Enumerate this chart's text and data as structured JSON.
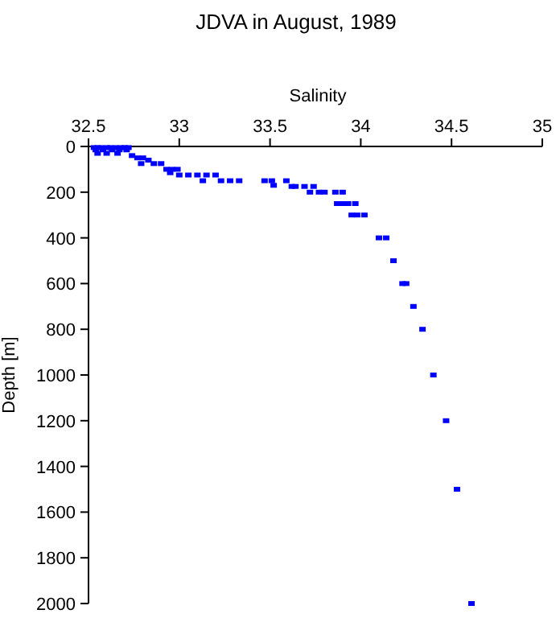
{
  "chart_data": {
    "type": "scatter",
    "title": "JDVA in August, 1989",
    "xlabel": "Salinity",
    "ylabel": "Depth [m]",
    "xlim": [
      32.5,
      35
    ],
    "xticks": [
      32.5,
      33,
      33.5,
      34,
      34.5,
      35
    ],
    "ylim": [
      2000,
      0
    ],
    "yticks": [
      0,
      200,
      400,
      600,
      800,
      1000,
      1200,
      1400,
      1600,
      1800,
      2000
    ],
    "marker": "square",
    "series": [
      {
        "color": "#0000ff",
        "x": [
          32.53,
          32.55,
          32.57,
          32.6,
          32.62,
          32.65,
          32.68,
          32.7,
          32.72,
          32.54,
          32.58,
          32.63,
          32.67,
          32.71,
          32.55,
          32.6,
          32.66,
          32.74,
          32.77,
          32.8,
          32.83,
          32.79,
          32.86,
          32.9,
          32.93,
          32.96,
          32.99,
          32.95,
          33.0,
          33.05,
          33.1,
          33.15,
          33.2,
          33.13,
          33.23,
          33.28,
          33.33,
          33.47,
          33.51,
          33.52,
          33.59,
          33.62,
          33.64,
          33.69,
          33.74,
          33.72,
          33.77,
          33.8,
          33.86,
          33.9,
          33.87,
          33.9,
          33.93,
          33.97,
          33.95,
          33.98,
          34.02,
          34.1,
          34.14,
          34.18,
          34.23,
          34.25,
          34.29,
          34.34,
          34.4,
          34.47,
          34.53,
          34.61
        ],
        "values": [
          5,
          5,
          5,
          5,
          5,
          5,
          5,
          5,
          5,
          15,
          15,
          15,
          15,
          15,
          30,
          30,
          30,
          40,
          50,
          50,
          60,
          75,
          75,
          75,
          100,
          100,
          100,
          115,
          125,
          125,
          125,
          125,
          125,
          150,
          150,
          150,
          150,
          150,
          150,
          170,
          150,
          175,
          175,
          175,
          175,
          200,
          200,
          200,
          200,
          200,
          250,
          250,
          250,
          250,
          300,
          300,
          300,
          400,
          400,
          500,
          600,
          600,
          700,
          800,
          1000,
          1200,
          1500,
          2000
        ]
      }
    ]
  }
}
